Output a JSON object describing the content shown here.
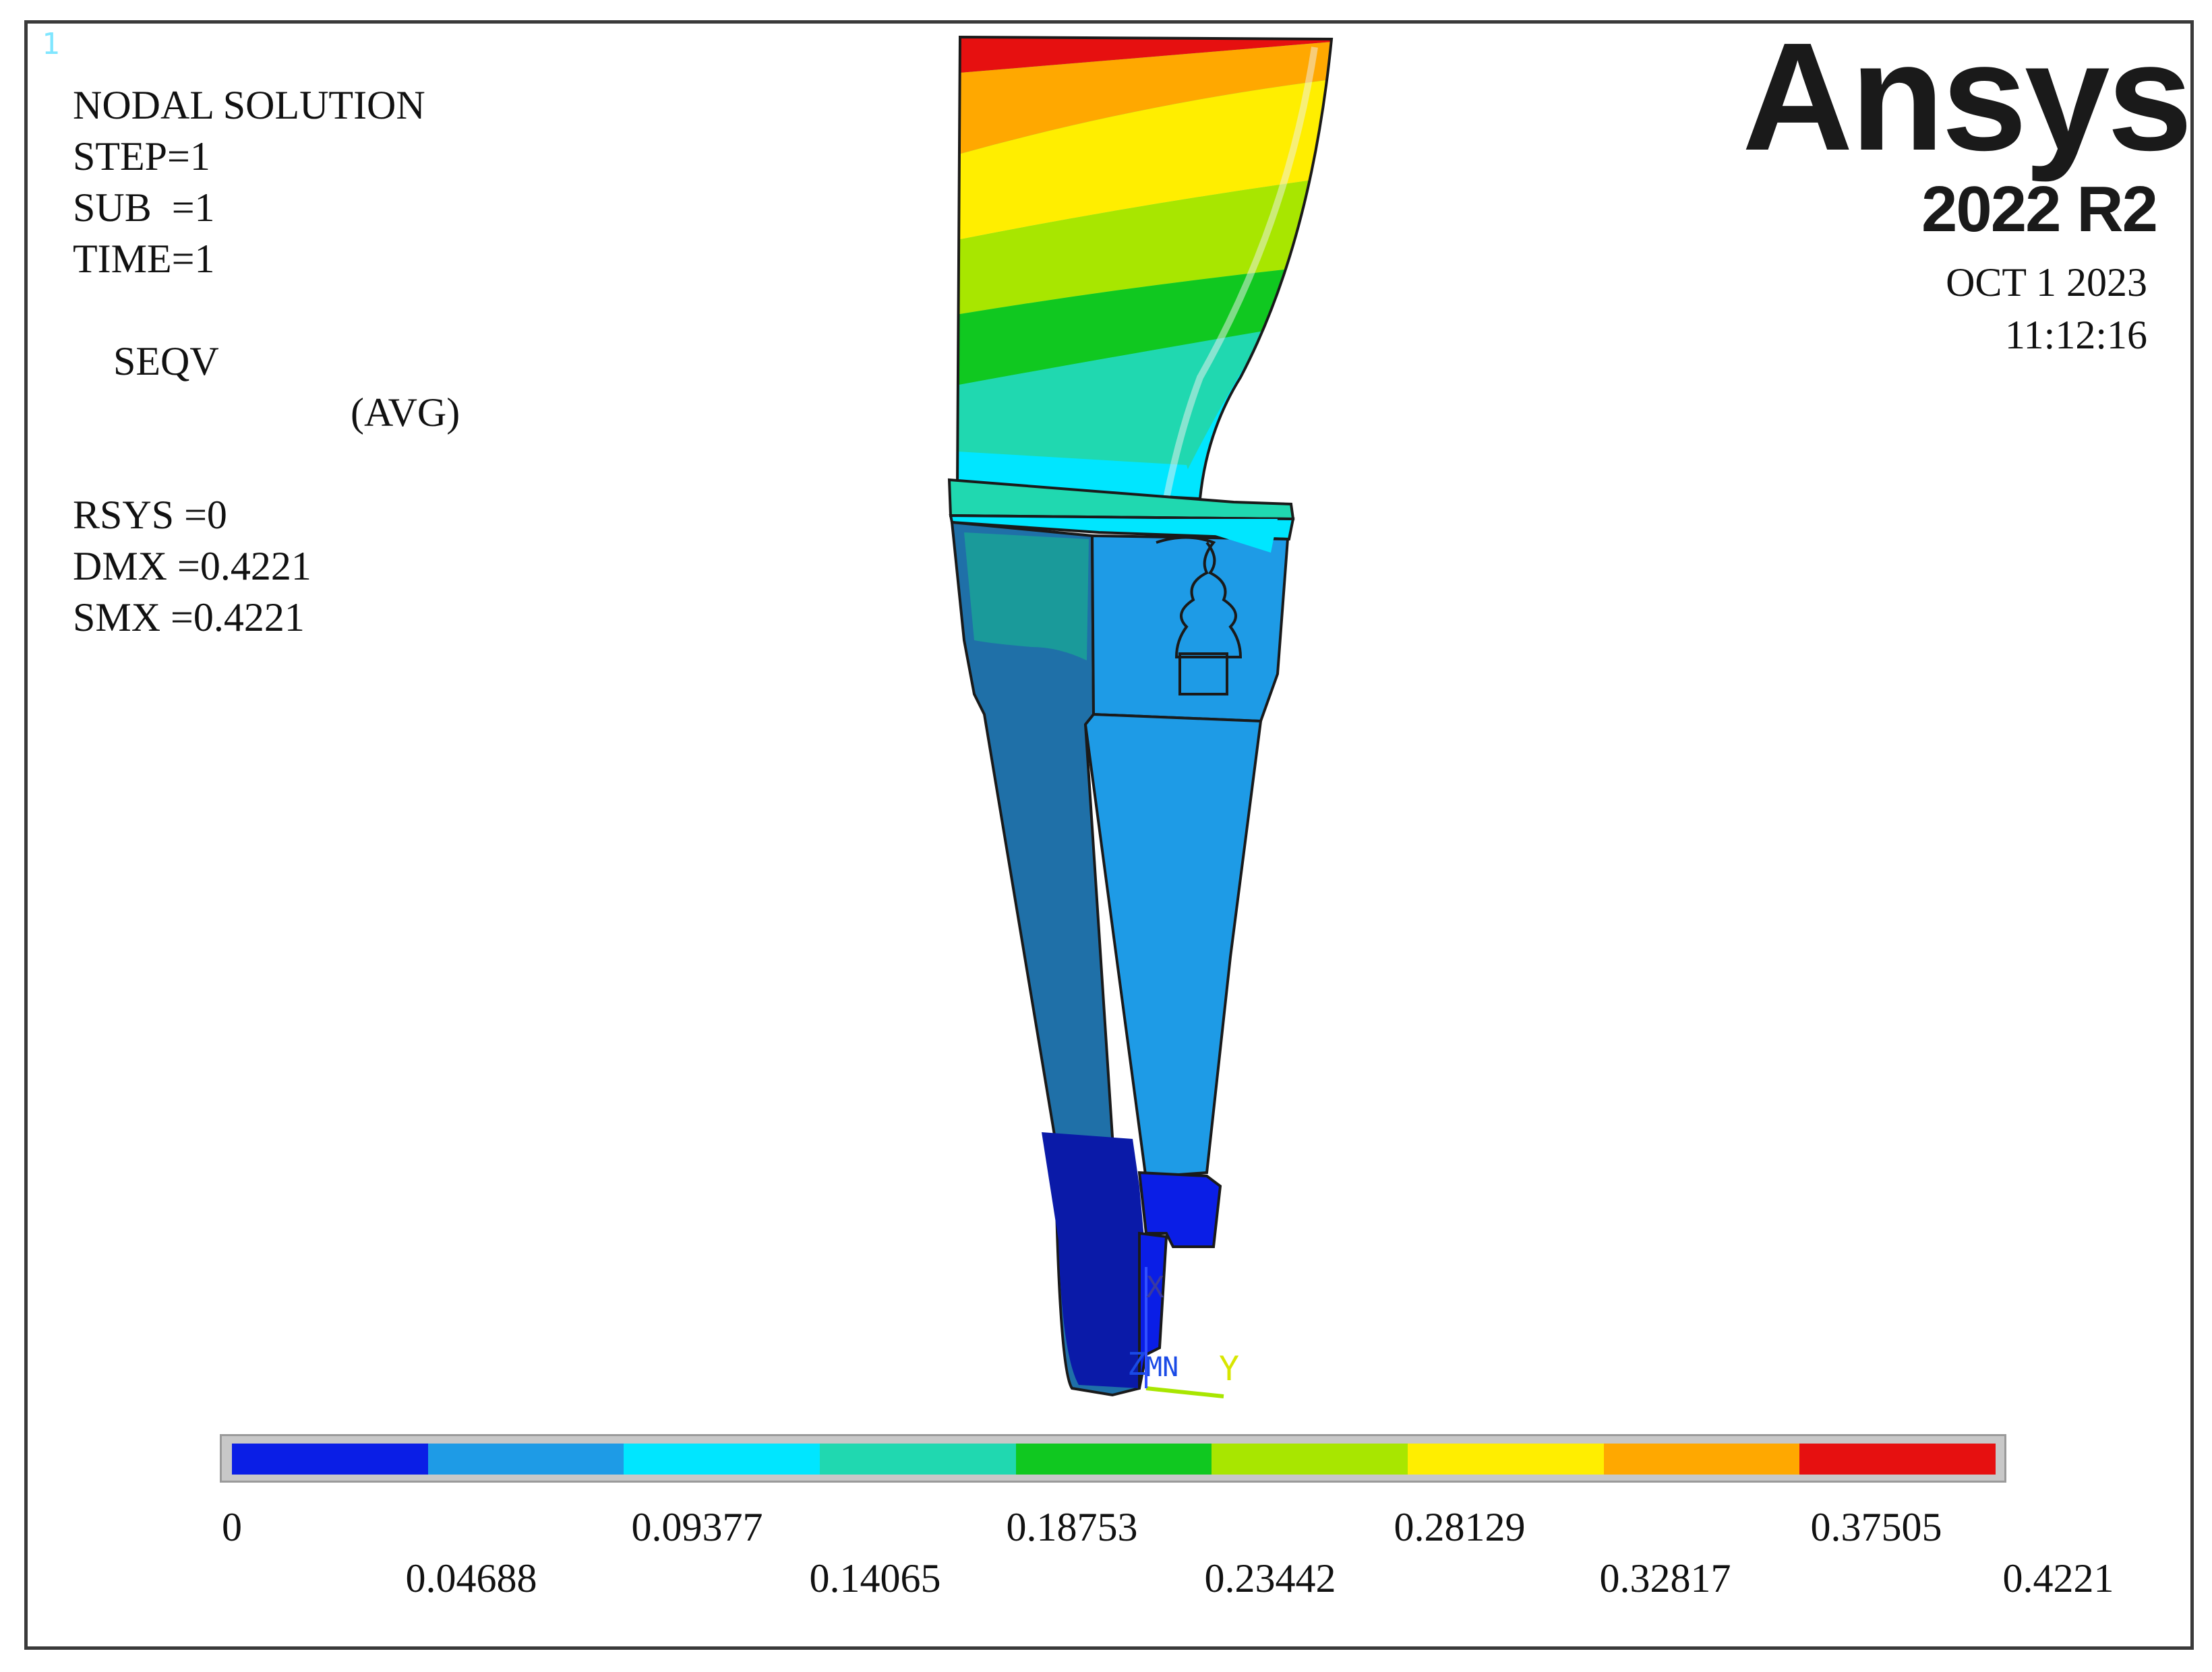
{
  "window_number": "1",
  "info_lines": [
    "NODAL SOLUTION",
    "STEP=1",
    "SUB  =1",
    "TIME=1",
    "SEQV",
    "RSYS =0",
    "DMX =0.4221",
    "SMX =0.4221"
  ],
  "avg_label": "(AVG)",
  "logo_text": "Ansys",
  "version_text": "2022 R2",
  "date": "OCT 1 2023",
  "time": "11:12:16",
  "triad": {
    "z_label": "Z",
    "mn_label": "MN",
    "x_label": "X",
    "y_label": "Y"
  },
  "legend": {
    "colors": [
      "#0a1ee6",
      "#1e9be6",
      "#00e6ff",
      "#20d8b0",
      "#10c820",
      "#a8e600",
      "#ffee00",
      "#ffa800",
      "#e61010"
    ],
    "labels_top": [
      "0",
      "0.09377",
      "0.18753",
      "0.28129",
      "0.37505"
    ],
    "labels_bottom": [
      "0.04688",
      "0.14065",
      "0.23442",
      "0.32817",
      "0.4221"
    ],
    "min": 0,
    "max": 0.4221
  }
}
